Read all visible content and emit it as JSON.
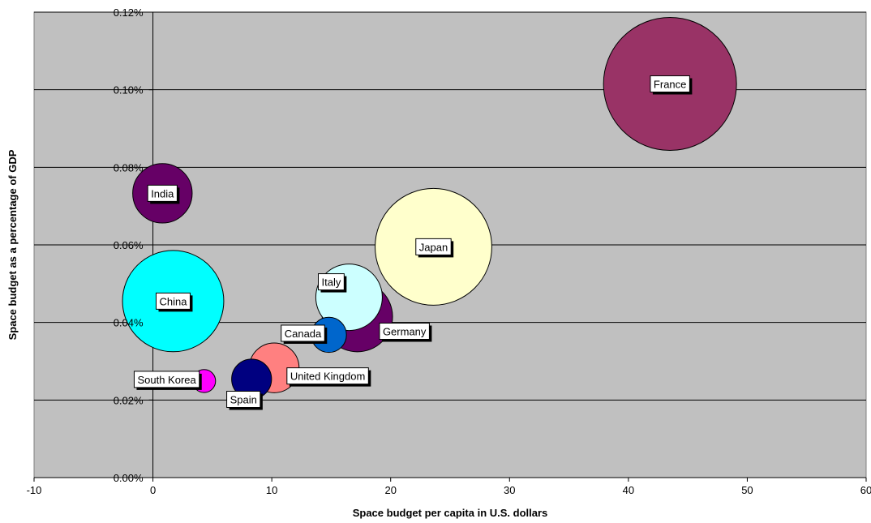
{
  "chart_data": {
    "type": "bubble",
    "xlabel": "Space budget per capita in U.S. dollars",
    "ylabel": "Space budget as a percentage of GDP",
    "xlim": [
      -10,
      60
    ],
    "ylim": [
      0,
      0.12
    ],
    "x_ticks": [
      -10,
      0,
      10,
      20,
      30,
      40,
      50,
      60
    ],
    "y_ticks": [
      0,
      0.02,
      0.04,
      0.06,
      0.08,
      0.1,
      0.12
    ],
    "y_tick_labels": [
      "0.00%",
      "0.02%",
      "0.04%",
      "0.06%",
      "0.08%",
      "0.10%",
      "0.12%"
    ],
    "y_unit": "percent",
    "grid": "horizontal",
    "legend": "none",
    "plot_background": "#c0c0c0",
    "points": [
      {
        "label": "France",
        "x": 43.5,
        "y": 0.1015,
        "size": 100,
        "color": "#993366"
      },
      {
        "label": "India",
        "x": 0.8,
        "y": 0.0733,
        "size": 20,
        "color": "#660066"
      },
      {
        "label": "Japan",
        "x": 23.6,
        "y": 0.0595,
        "size": 77,
        "color": "#ffffcc"
      },
      {
        "label": "China",
        "x": 1.7,
        "y": 0.0455,
        "size": 58,
        "color": "#00ffff"
      },
      {
        "label": "Germany",
        "x": 17.2,
        "y": 0.0415,
        "size": 28,
        "color": "#660066"
      },
      {
        "label": "Italy",
        "x": 16.5,
        "y": 0.0465,
        "size": 25,
        "color": "#ccffff"
      },
      {
        "label": "Canada",
        "x": 14.8,
        "y": 0.0368,
        "size": 7,
        "color": "#0066cc"
      },
      {
        "label": "United Kingdom",
        "x": 10.2,
        "y": 0.0283,
        "size": 14,
        "color": "#ff8080"
      },
      {
        "label": "Spain",
        "x": 8.3,
        "y": 0.0254,
        "size": 9,
        "color": "#000080"
      },
      {
        "label": "South Korea",
        "x": 4.3,
        "y": 0.0249,
        "size": 3,
        "color": "#ff00ff"
      }
    ]
  }
}
